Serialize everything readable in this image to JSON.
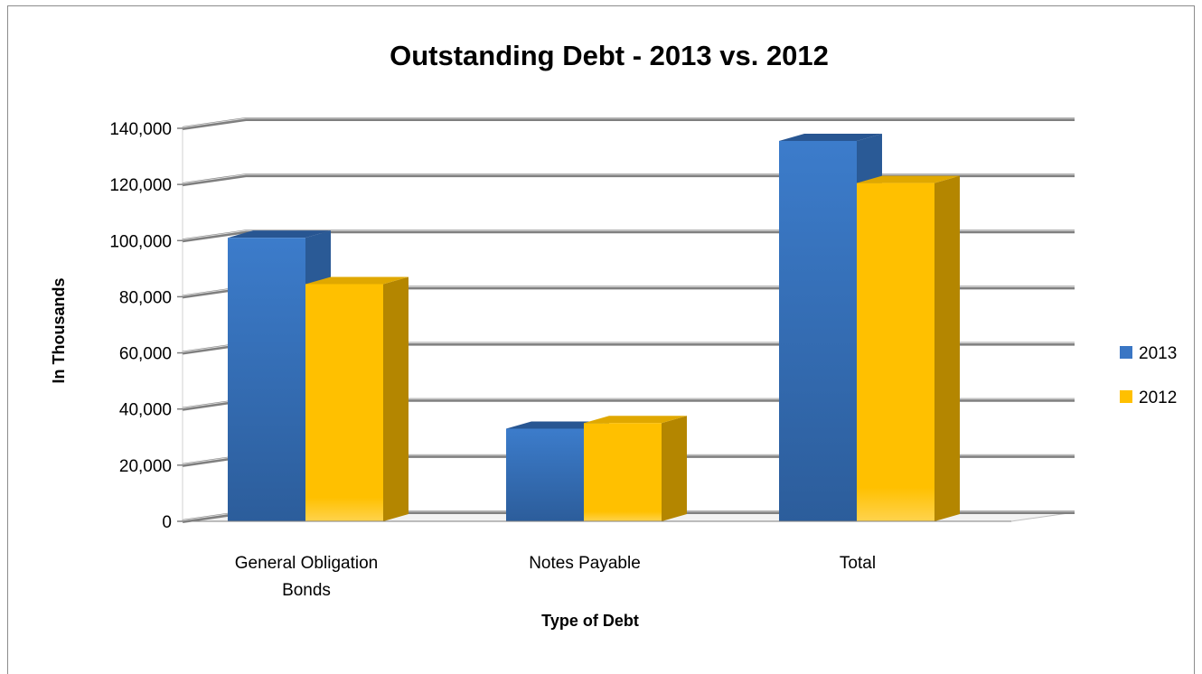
{
  "chart_data": {
    "type": "bar",
    "title": "Outstanding Debt - 2013 vs. 2012",
    "xlabel": "Type of Debt",
    "ylabel": "In Thousands",
    "categories": [
      [
        "General Obligation",
        "Bonds"
      ],
      [
        "Notes Payable"
      ],
      [
        "Total"
      ]
    ],
    "series": [
      {
        "name": "2013",
        "values": [
          101000,
          33000,
          135500
        ]
      },
      {
        "name": "2012",
        "values": [
          84500,
          35000,
          120500
        ]
      }
    ],
    "ylim": [
      0,
      140000
    ],
    "yticks": [
      0,
      20000,
      40000,
      60000,
      80000,
      100000,
      120000,
      140000
    ],
    "ytick_labels": [
      "0",
      "20,000",
      "40,000",
      "60,000",
      "80,000",
      "100,000",
      "120,000",
      "140,000"
    ],
    "grid": true,
    "legend_position": "right",
    "colors": {
      "2013": "#3a76c4",
      "2013_side": "#2a5a96",
      "2013_dark": "#285692",
      "2012": "#ffc000",
      "2012_side": "#b48600",
      "2012_dark": "#e0a800",
      "grid": "#7f7f7f",
      "grid_highlight": "#d9d9d9"
    }
  }
}
